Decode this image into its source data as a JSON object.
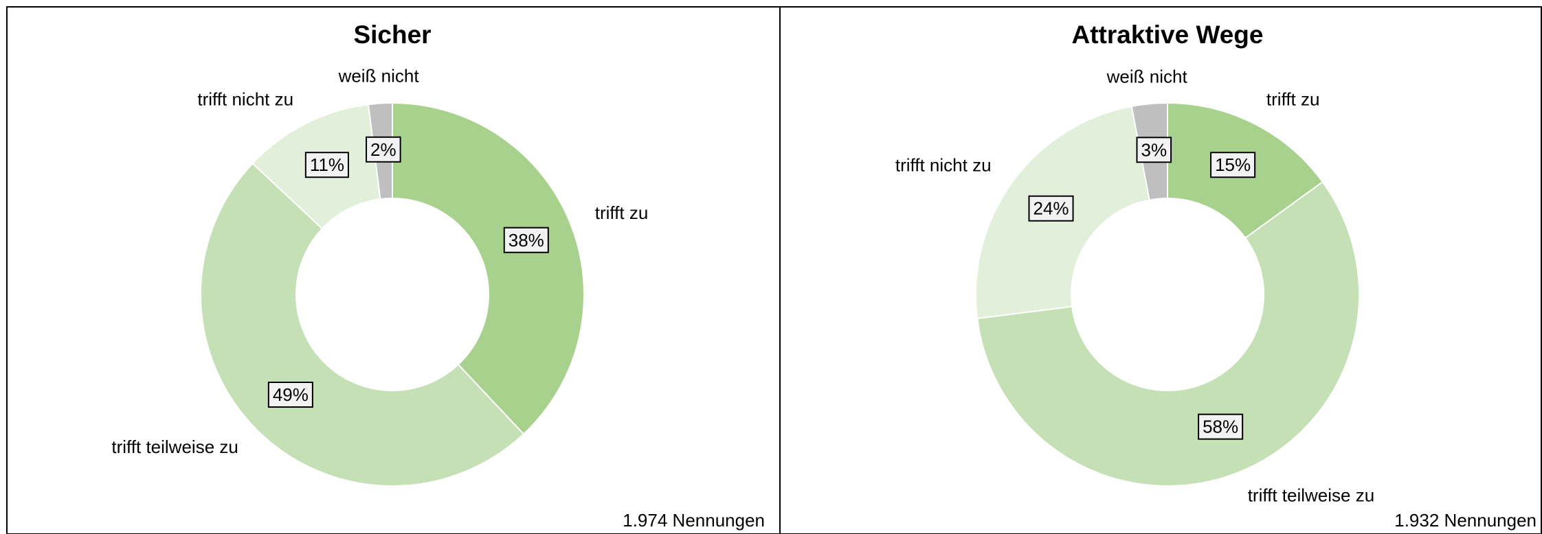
{
  "chart_data": [
    {
      "type": "donut",
      "title": "Sicher",
      "categories": [
        "trifft zu",
        "trifft teilweise zu",
        "trifft nicht zu",
        "weiß nicht"
      ],
      "values": [
        38,
        49,
        11,
        2
      ],
      "value_labels": [
        "38%",
        "49%",
        "11%",
        "2%"
      ],
      "colors": [
        "#a9d18e",
        "#c5e0b4",
        "#e2efda",
        "#bfbfbf"
      ],
      "note": "1.974 Nennungen"
    },
    {
      "type": "donut",
      "title": "Attraktive Wege",
      "categories": [
        "trifft zu",
        "trifft teilweise zu",
        "trifft nicht zu",
        "weiß nicht"
      ],
      "values": [
        15,
        58,
        24,
        3
      ],
      "value_labels": [
        "15%",
        "58%",
        "24%",
        "3%"
      ],
      "colors": [
        "#a9d18e",
        "#c5e0b4",
        "#e2efda",
        "#bfbfbf"
      ],
      "note": "1.932 Nennungen"
    }
  ]
}
